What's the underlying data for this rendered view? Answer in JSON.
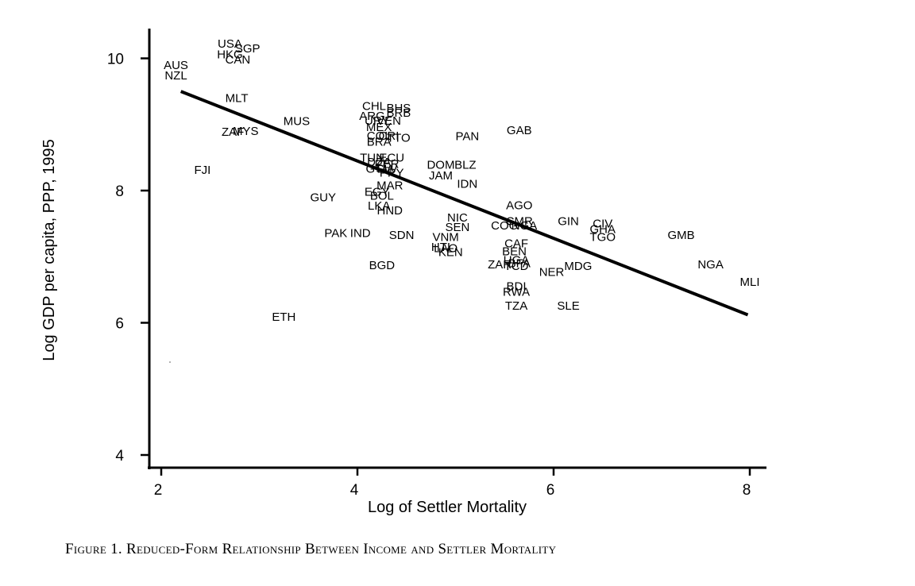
{
  "caption": "Figure 1. Reduced-Form Relationship Between Income and Settler Mortality",
  "chart_data": {
    "type": "scatter",
    "title": "",
    "xlabel": "Log of Settler Mortality",
    "ylabel": "Log GDP per capita, PPP, 1995",
    "xlim": [
      1.85,
      8.25
    ],
    "ylim": [
      3.8,
      10.45
    ],
    "xticks": [
      2,
      4,
      6,
      8
    ],
    "yticks": [
      4,
      6,
      8,
      10
    ],
    "grid": false,
    "marker": "country-code",
    "points": [
      {
        "label": "USA",
        "x": 2.7,
        "y": 10.22
      },
      {
        "label": "SGP",
        "x": 2.88,
        "y": 10.15
      },
      {
        "label": "HKG",
        "x": 2.7,
        "y": 10.06
      },
      {
        "label": "CAN",
        "x": 2.78,
        "y": 9.98
      },
      {
        "label": "AUS",
        "x": 2.15,
        "y": 9.9
      },
      {
        "label": "NZL",
        "x": 2.15,
        "y": 9.74
      },
      {
        "label": "MLT",
        "x": 2.77,
        "y": 9.4
      },
      {
        "label": "MUS",
        "x": 3.38,
        "y": 9.05
      },
      {
        "label": "ZAF",
        "x": 2.73,
        "y": 8.89
      },
      {
        "label": "MYS",
        "x": 2.86,
        "y": 8.9
      },
      {
        "label": "FJI",
        "x": 2.42,
        "y": 8.31
      },
      {
        "label": "GUY",
        "x": 3.65,
        "y": 7.9
      },
      {
        "label": "PAK",
        "x": 3.78,
        "y": 7.36
      },
      {
        "label": "IND",
        "x": 4.03,
        "y": 7.36
      },
      {
        "label": "ETH",
        "x": 3.25,
        "y": 6.09
      },
      {
        "label": "BGD",
        "x": 4.25,
        "y": 6.87
      },
      {
        "label": "CHL",
        "x": 4.17,
        "y": 9.28
      },
      {
        "label": "BHS",
        "x": 4.42,
        "y": 9.25
      },
      {
        "label": "BRB",
        "x": 4.42,
        "y": 9.18
      },
      {
        "label": "ARG",
        "x": 4.15,
        "y": 9.13
      },
      {
        "label": "URY",
        "x": 4.2,
        "y": 9.06
      },
      {
        "label": "VEN",
        "x": 4.32,
        "y": 9.06
      },
      {
        "label": "MEX",
        "x": 4.22,
        "y": 8.96
      },
      {
        "label": "COL",
        "x": 4.22,
        "y": 8.83
      },
      {
        "label": "CRI",
        "x": 4.32,
        "y": 8.83
      },
      {
        "label": "TTO",
        "x": 4.42,
        "y": 8.8
      },
      {
        "label": "BRA",
        "x": 4.22,
        "y": 8.74
      },
      {
        "label": "TUN",
        "x": 4.15,
        "y": 8.5
      },
      {
        "label": "ECU",
        "x": 4.35,
        "y": 8.5
      },
      {
        "label": "DZA",
        "x": 4.22,
        "y": 8.43
      },
      {
        "label": "PER",
        "x": 4.3,
        "y": 8.4
      },
      {
        "label": "GTM",
        "x": 4.22,
        "y": 8.33
      },
      {
        "label": "SLV",
        "x": 4.3,
        "y": 8.33
      },
      {
        "label": "PRY",
        "x": 4.35,
        "y": 8.27
      },
      {
        "label": "MAR",
        "x": 4.33,
        "y": 8.08
      },
      {
        "label": "EGY",
        "x": 4.2,
        "y": 7.98
      },
      {
        "label": "BOL",
        "x": 4.25,
        "y": 7.92
      },
      {
        "label": "LKA",
        "x": 4.22,
        "y": 7.77
      },
      {
        "label": "HND",
        "x": 4.33,
        "y": 7.7
      },
      {
        "label": "PAN",
        "x": 5.12,
        "y": 8.82
      },
      {
        "label": "GAB",
        "x": 5.65,
        "y": 8.91
      },
      {
        "label": "DOM",
        "x": 4.85,
        "y": 8.39
      },
      {
        "label": "BLZ",
        "x": 5.1,
        "y": 8.39
      },
      {
        "label": "JAM",
        "x": 4.85,
        "y": 8.23
      },
      {
        "label": "IDN",
        "x": 5.12,
        "y": 8.1
      },
      {
        "label": "SDN",
        "x": 4.45,
        "y": 7.33
      },
      {
        "label": "VNM",
        "x": 4.9,
        "y": 7.3
      },
      {
        "label": "HTI",
        "x": 4.85,
        "y": 7.15
      },
      {
        "label": "LAO",
        "x": 4.9,
        "y": 7.13
      },
      {
        "label": "KEN",
        "x": 4.95,
        "y": 7.07
      },
      {
        "label": "NIC",
        "x": 5.02,
        "y": 7.59
      },
      {
        "label": "SEN",
        "x": 5.02,
        "y": 7.45
      },
      {
        "label": "COG",
        "x": 5.5,
        "y": 7.47
      },
      {
        "label": "CMR",
        "x": 5.65,
        "y": 7.54
      },
      {
        "label": "NGA2",
        "x": 5.7,
        "y": 7.47
      },
      {
        "label": "CAF",
        "x": 5.62,
        "y": 7.2
      },
      {
        "label": "BEN",
        "x": 5.6,
        "y": 7.08
      },
      {
        "label": "UGA",
        "x": 5.62,
        "y": 6.95
      },
      {
        "label": "ZAR",
        "x": 5.45,
        "y": 6.88
      },
      {
        "label": "TCD",
        "x": 5.62,
        "y": 6.86
      },
      {
        "label": "BFA",
        "x": 5.65,
        "y": 6.9
      },
      {
        "label": "NER",
        "x": 5.98,
        "y": 6.77
      },
      {
        "label": "MDG",
        "x": 6.25,
        "y": 6.86
      },
      {
        "label": "BDI",
        "x": 5.62,
        "y": 6.55
      },
      {
        "label": "RWA",
        "x": 5.62,
        "y": 6.47
      },
      {
        "label": "TZA",
        "x": 5.62,
        "y": 6.26
      },
      {
        "label": "SLE",
        "x": 6.15,
        "y": 6.26
      },
      {
        "label": "AGO",
        "x": 5.65,
        "y": 7.78
      },
      {
        "label": "GIN",
        "x": 6.15,
        "y": 7.54
      },
      {
        "label": "CIV",
        "x": 6.5,
        "y": 7.5
      },
      {
        "label": "GHA",
        "x": 6.5,
        "y": 7.42
      },
      {
        "label": "TGO",
        "x": 6.5,
        "y": 7.3
      },
      {
        "label": "GMB",
        "x": 7.3,
        "y": 7.33
      },
      {
        "label": "NGA",
        "x": 7.6,
        "y": 6.88
      },
      {
        "label": "MLI",
        "x": 8.0,
        "y": 6.62
      }
    ],
    "fit_line": {
      "x": [
        2.2,
        7.98
      ],
      "y": [
        9.5,
        6.12
      ]
    }
  }
}
